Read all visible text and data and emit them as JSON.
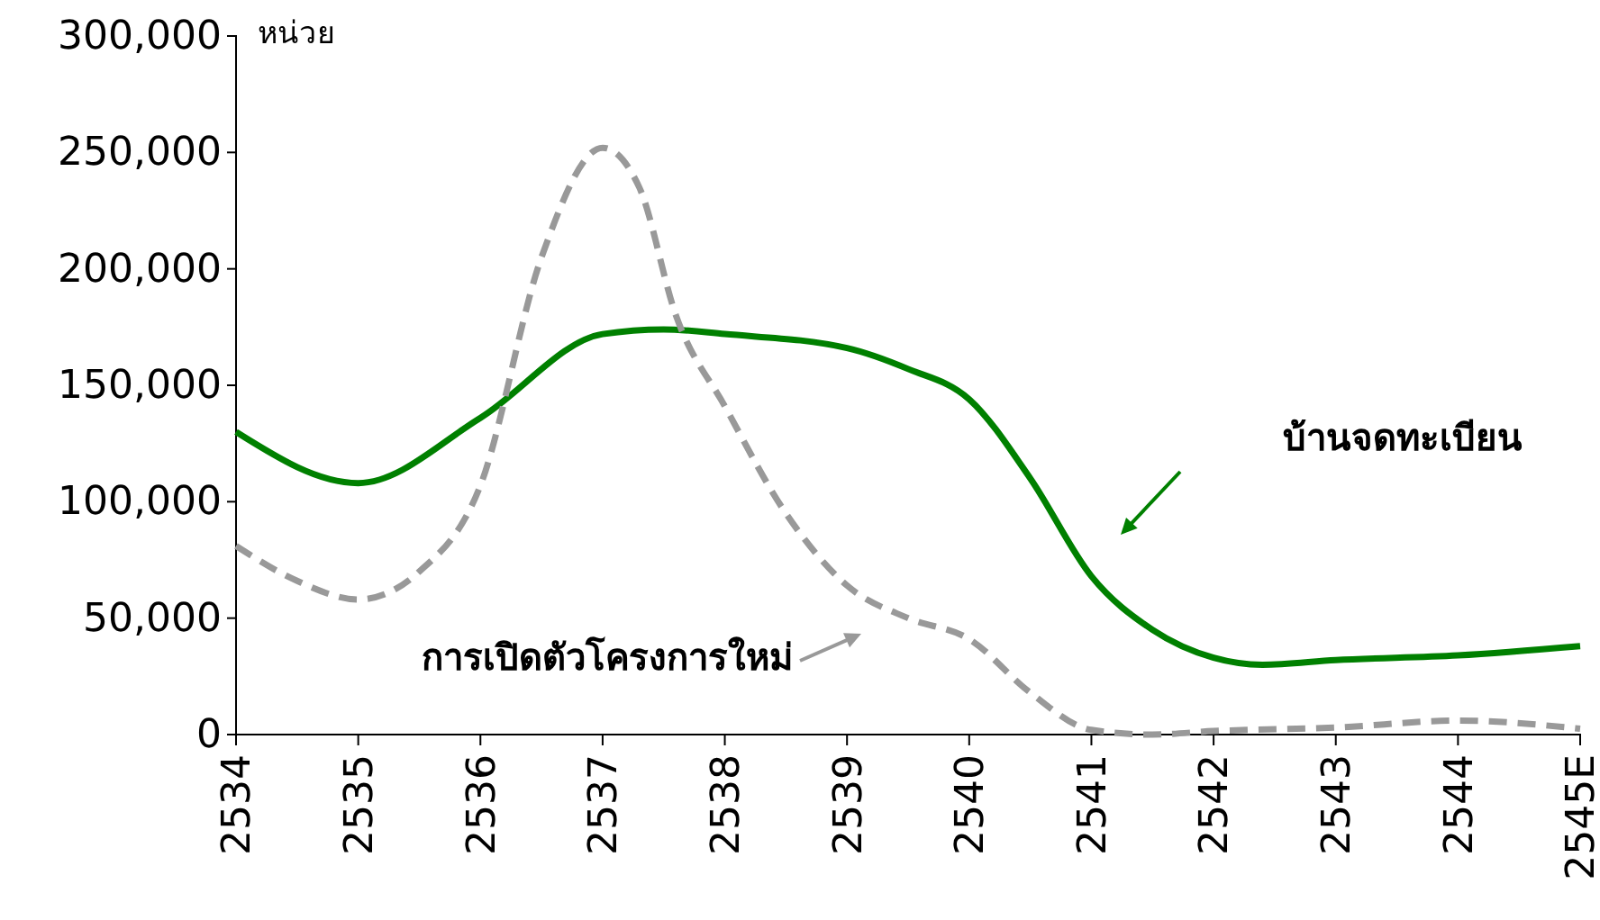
{
  "chart_data": {
    "type": "line",
    "ylabel": "หน่วย",
    "xlim": [
      2534,
      2545
    ],
    "xticks": [
      2534,
      2535,
      2536,
      2537,
      2538,
      2539,
      2540,
      2541,
      2542,
      2543,
      2544,
      {
        "value": 2545,
        "label": "2545E"
      }
    ],
    "ylim": [
      0,
      300000
    ],
    "yticks": [
      {
        "value": 0,
        "label": "0"
      },
      {
        "value": 50000,
        "label": "50,000"
      },
      {
        "value": 100000,
        "label": "100,000"
      },
      {
        "value": 150000,
        "label": "150,000"
      },
      {
        "value": 200000,
        "label": "200,000"
      },
      {
        "value": 250000,
        "label": "250,000"
      },
      {
        "value": 300000,
        "label": "300,000"
      }
    ],
    "grid": false,
    "annotations": [
      "บ้านจดทะเบียน",
      "การเปิดตัวโครงการใหม่"
    ],
    "series": [
      {
        "color": "#008000",
        "line_style": "solid",
        "x": [
          2534,
          2535,
          2536,
          2537,
          2537.5,
          2538,
          2539,
          2539.5,
          2540,
          2540.5,
          2541,
          2541.5,
          2542,
          2542.4,
          2543,
          2544,
          2545
        ],
        "values": [
          130000,
          108000,
          136000,
          172000,
          174000,
          172000,
          166000,
          157000,
          144000,
          110000,
          68000,
          45000,
          33000,
          30000,
          32000,
          34000,
          38000
        ]
      },
      {
        "color": "#999999",
        "line_style": "dashed",
        "x": [
          2534,
          2534.5,
          2535,
          2535.5,
          2536,
          2536.5,
          2537,
          2537.3,
          2537.6,
          2538,
          2538.5,
          2539,
          2539.5,
          2540,
          2540.5,
          2541,
          2541.5,
          2542,
          2543,
          2544,
          2545
        ],
        "values": [
          81000,
          66000,
          58000,
          70000,
          107000,
          205000,
          252000,
          235000,
          180000,
          141000,
          95000,
          64000,
          50000,
          41000,
          18000,
          2000,
          0,
          1500,
          3000,
          6000,
          2500
        ]
      }
    ]
  }
}
